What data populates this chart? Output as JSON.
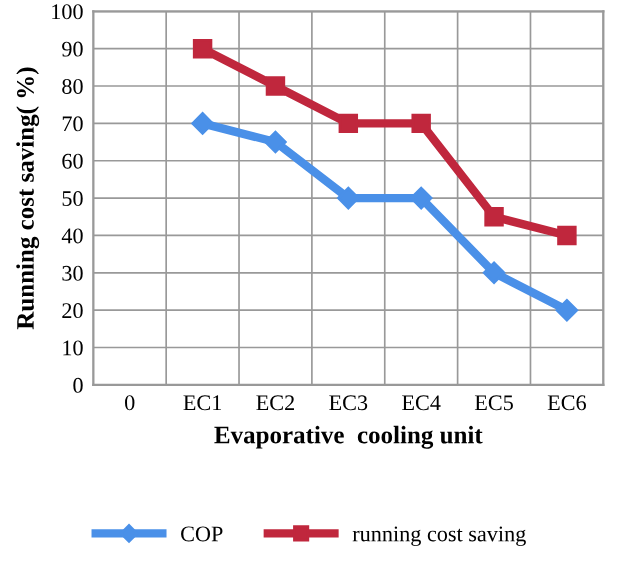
{
  "chart_data": {
    "type": "line",
    "xlabel": "Evaporative  cooling unit",
    "ylabel": "Running cost saving( %)",
    "categories": [
      "0",
      "EC1",
      "EC2",
      "EC3",
      "EC4",
      "EC5",
      "EC6"
    ],
    "series": [
      {
        "name": "COP",
        "color": "#4a90e8",
        "marker": "diamond",
        "values": [
          null,
          70,
          65,
          50,
          50,
          30,
          20
        ]
      },
      {
        "name": "running cost saving",
        "color": "#c0273d",
        "marker": "square",
        "values": [
          null,
          90,
          80,
          70,
          70,
          45,
          40
        ]
      }
    ],
    "ylim": [
      0,
      100
    ],
    "yticks": [
      0,
      10,
      20,
      30,
      40,
      50,
      60,
      70,
      80,
      90,
      100
    ],
    "grid": true,
    "legend": "bottom",
    "line_style": "solid"
  }
}
